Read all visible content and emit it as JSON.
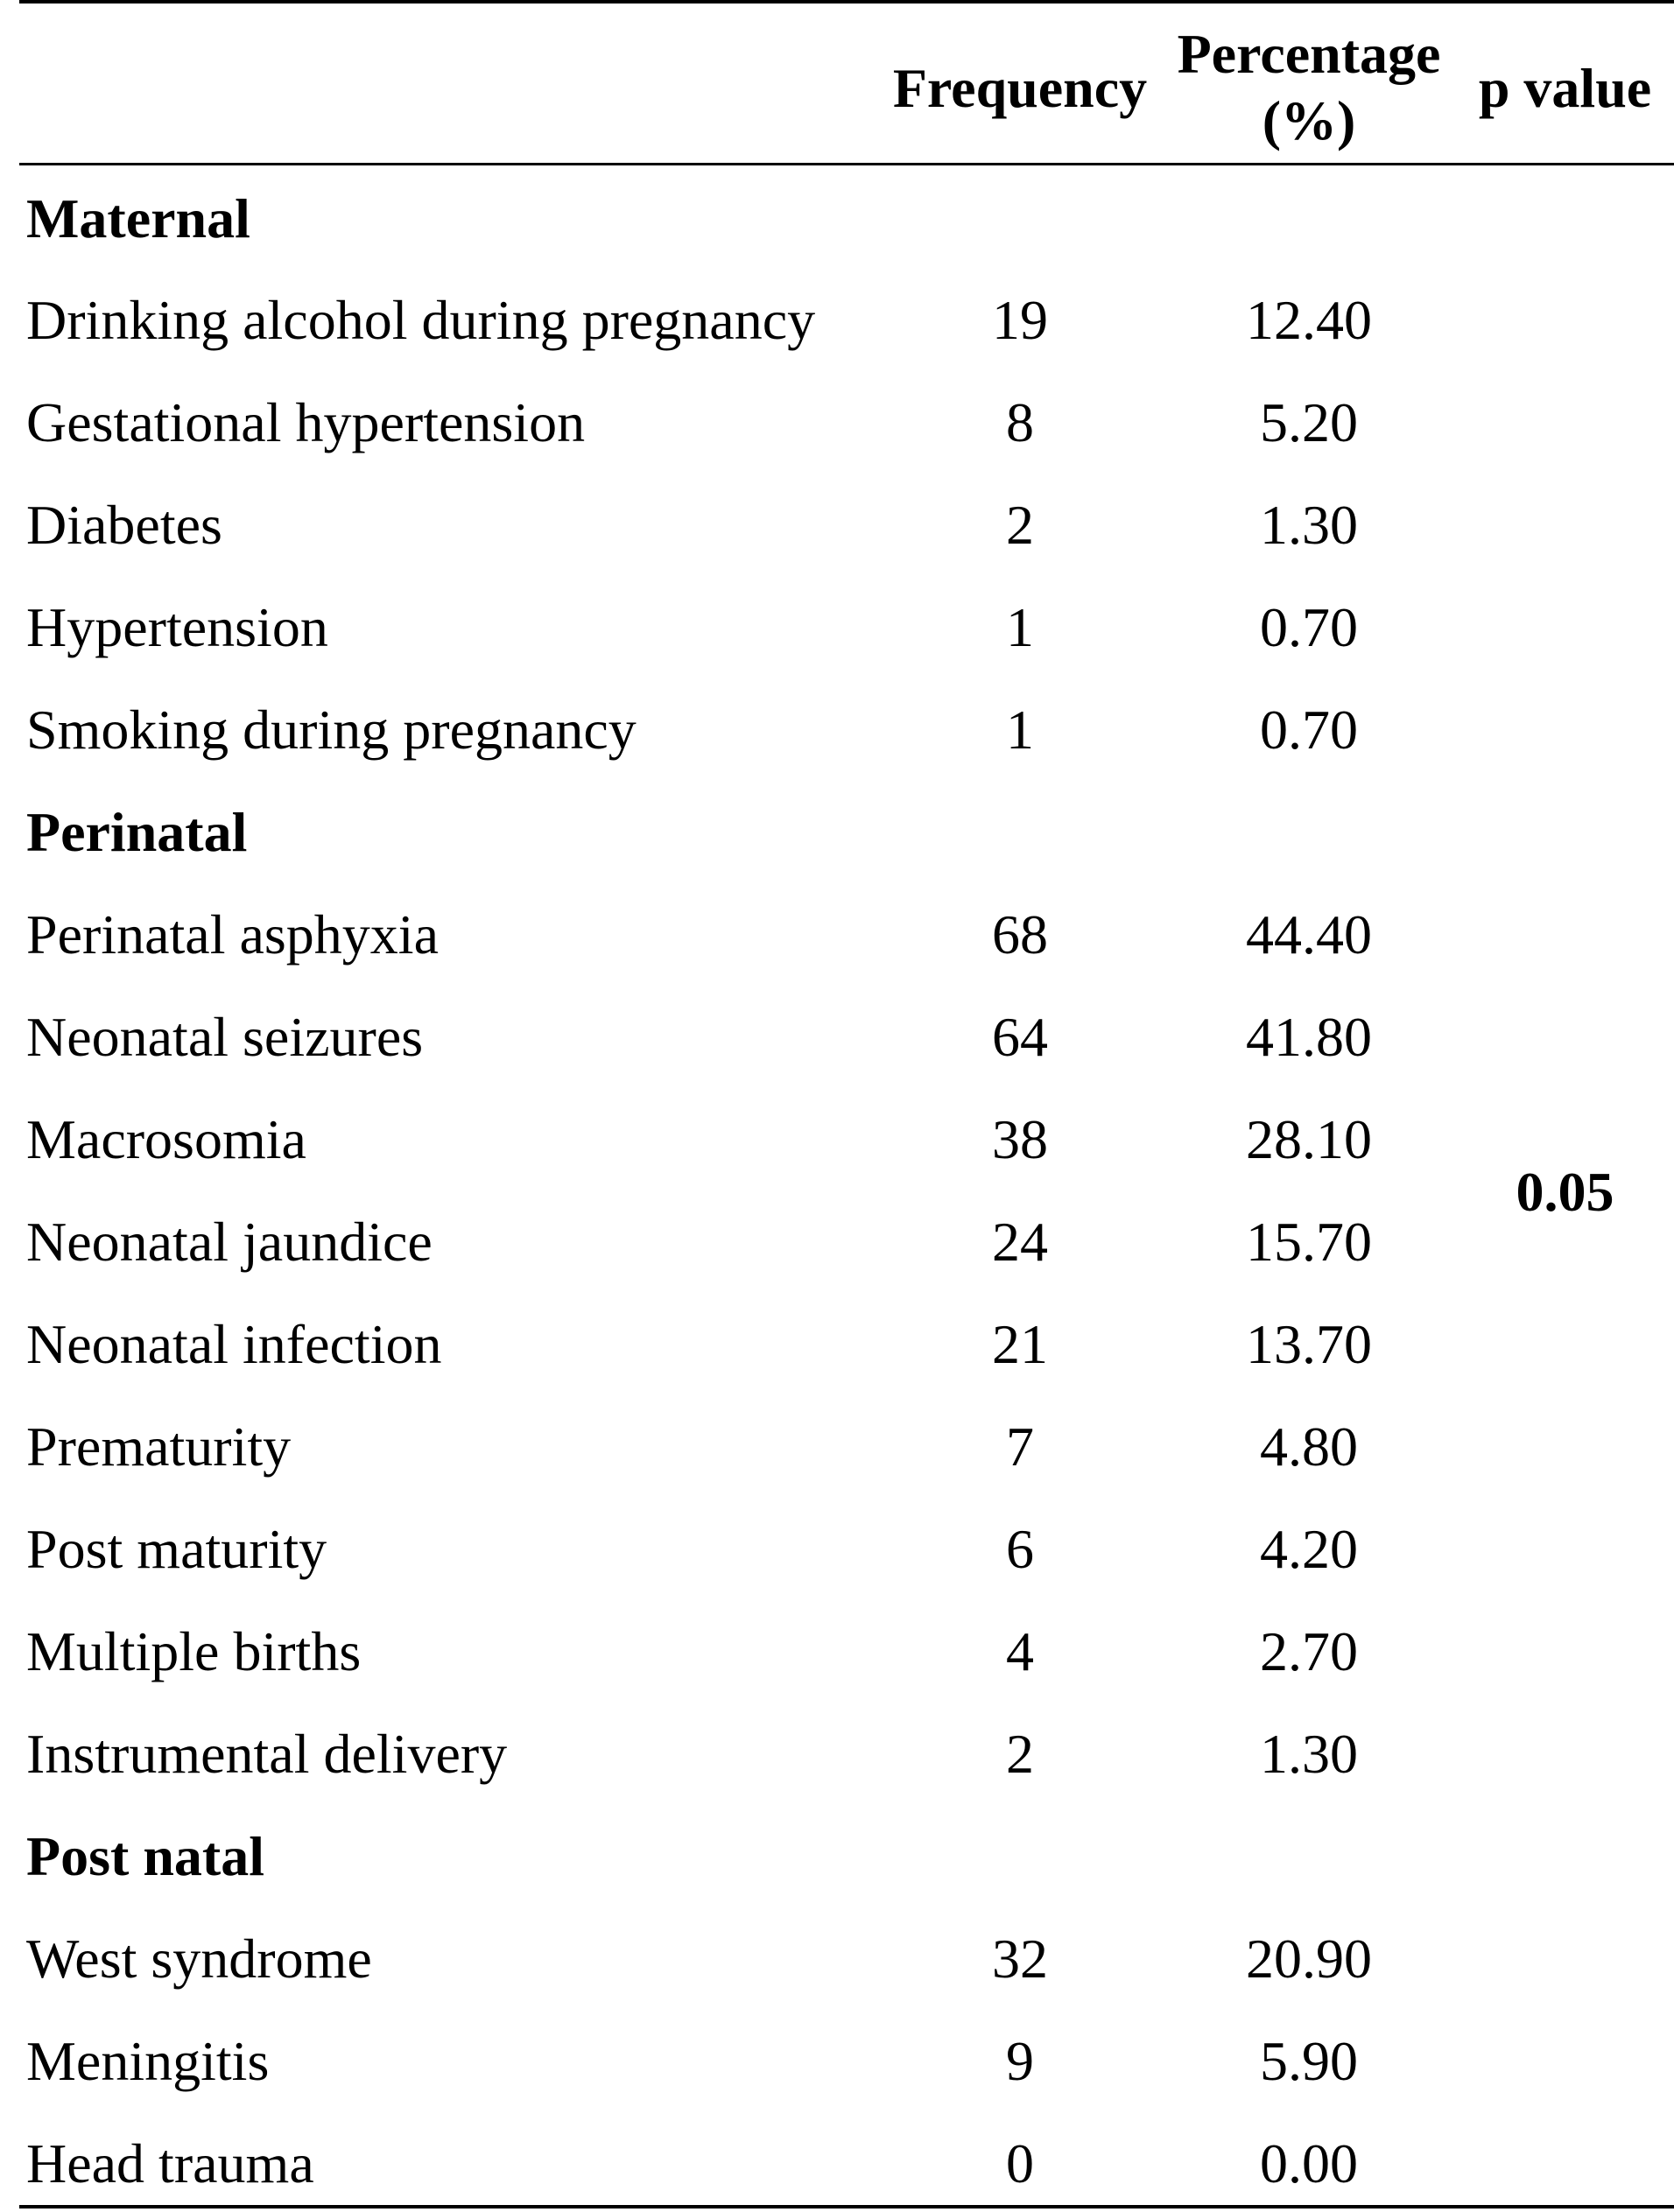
{
  "table": {
    "headers": {
      "frequency": "Frequency",
      "percentage_line1": "Percentage",
      "percentage_line2": "(%)",
      "p_value": "p value"
    },
    "sections": [
      {
        "title": "Maternal",
        "rows": [
          {
            "label": "Drinking alcohol during pregnancy",
            "frequency": "19",
            "percentage": "12.40"
          },
          {
            "label": "Gestational hypertension",
            "frequency": "8",
            "percentage": "5.20"
          },
          {
            "label": "Diabetes",
            "frequency": "2",
            "percentage": "1.30"
          },
          {
            "label": "Hypertension",
            "frequency": "1",
            "percentage": "0.70"
          },
          {
            "label": "Smoking during pregnancy",
            "frequency": "1",
            "percentage": "0.70"
          }
        ]
      },
      {
        "title": "Perinatal",
        "rows": [
          {
            "label": "Perinatal asphyxia",
            "frequency": "68",
            "percentage": "44.40"
          },
          {
            "label": "Neonatal seizures",
            "frequency": "64",
            "percentage": "41.80"
          },
          {
            "label": "Macrosomia",
            "frequency": "38",
            "percentage": "28.10"
          },
          {
            "label": "Neonatal jaundice",
            "frequency": "24",
            "percentage": "15.70"
          },
          {
            "label": "Neonatal infection",
            "frequency": "21",
            "percentage": "13.70"
          },
          {
            "label": "Prematurity",
            "frequency": "7",
            "percentage": "4.80"
          },
          {
            "label": "Post maturity",
            "frequency": "6",
            "percentage": "4.20"
          },
          {
            "label": "Multiple births",
            "frequency": "4",
            "percentage": "2.70"
          },
          {
            "label": "Instrumental delivery",
            "frequency": "2",
            "percentage": "1.30"
          }
        ]
      },
      {
        "title": "Post natal",
        "rows": [
          {
            "label": "West syndrome",
            "frequency": "32",
            "percentage": "20.90"
          },
          {
            "label": "Meningitis",
            "frequency": "9",
            "percentage": "5.90"
          },
          {
            "label": "Head trauma",
            "frequency": "0",
            "percentage": "0.00"
          }
        ]
      }
    ],
    "p_value": "0.05"
  }
}
